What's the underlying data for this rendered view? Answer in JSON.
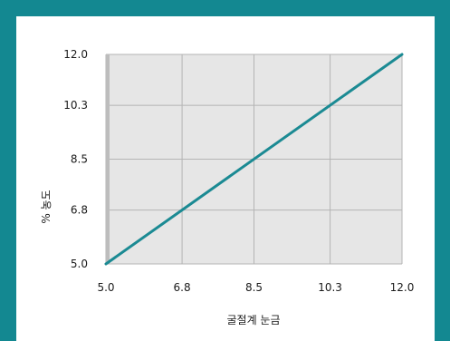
{
  "chart_data": {
    "type": "line",
    "x": [
      5.0,
      12.0
    ],
    "series": [
      {
        "values": [
          5.0,
          12.0
        ]
      }
    ],
    "xlabel": "굴절계 눈금",
    "ylabel": "% 농도",
    "xlim": [
      5.0,
      12.0
    ],
    "ylim": [
      5.0,
      12.0
    ],
    "x_ticks": [
      "5.0",
      "6.8",
      "8.5",
      "10.3",
      "12.0"
    ],
    "y_ticks": [
      "5.0",
      "6.8",
      "8.5",
      "10.3",
      "12.0"
    ],
    "grid": true,
    "colors": {
      "line": "#1B8A93",
      "plot_bg": "#E6E6E6",
      "grid": "#B4B4B4",
      "frame": "#138891"
    }
  }
}
